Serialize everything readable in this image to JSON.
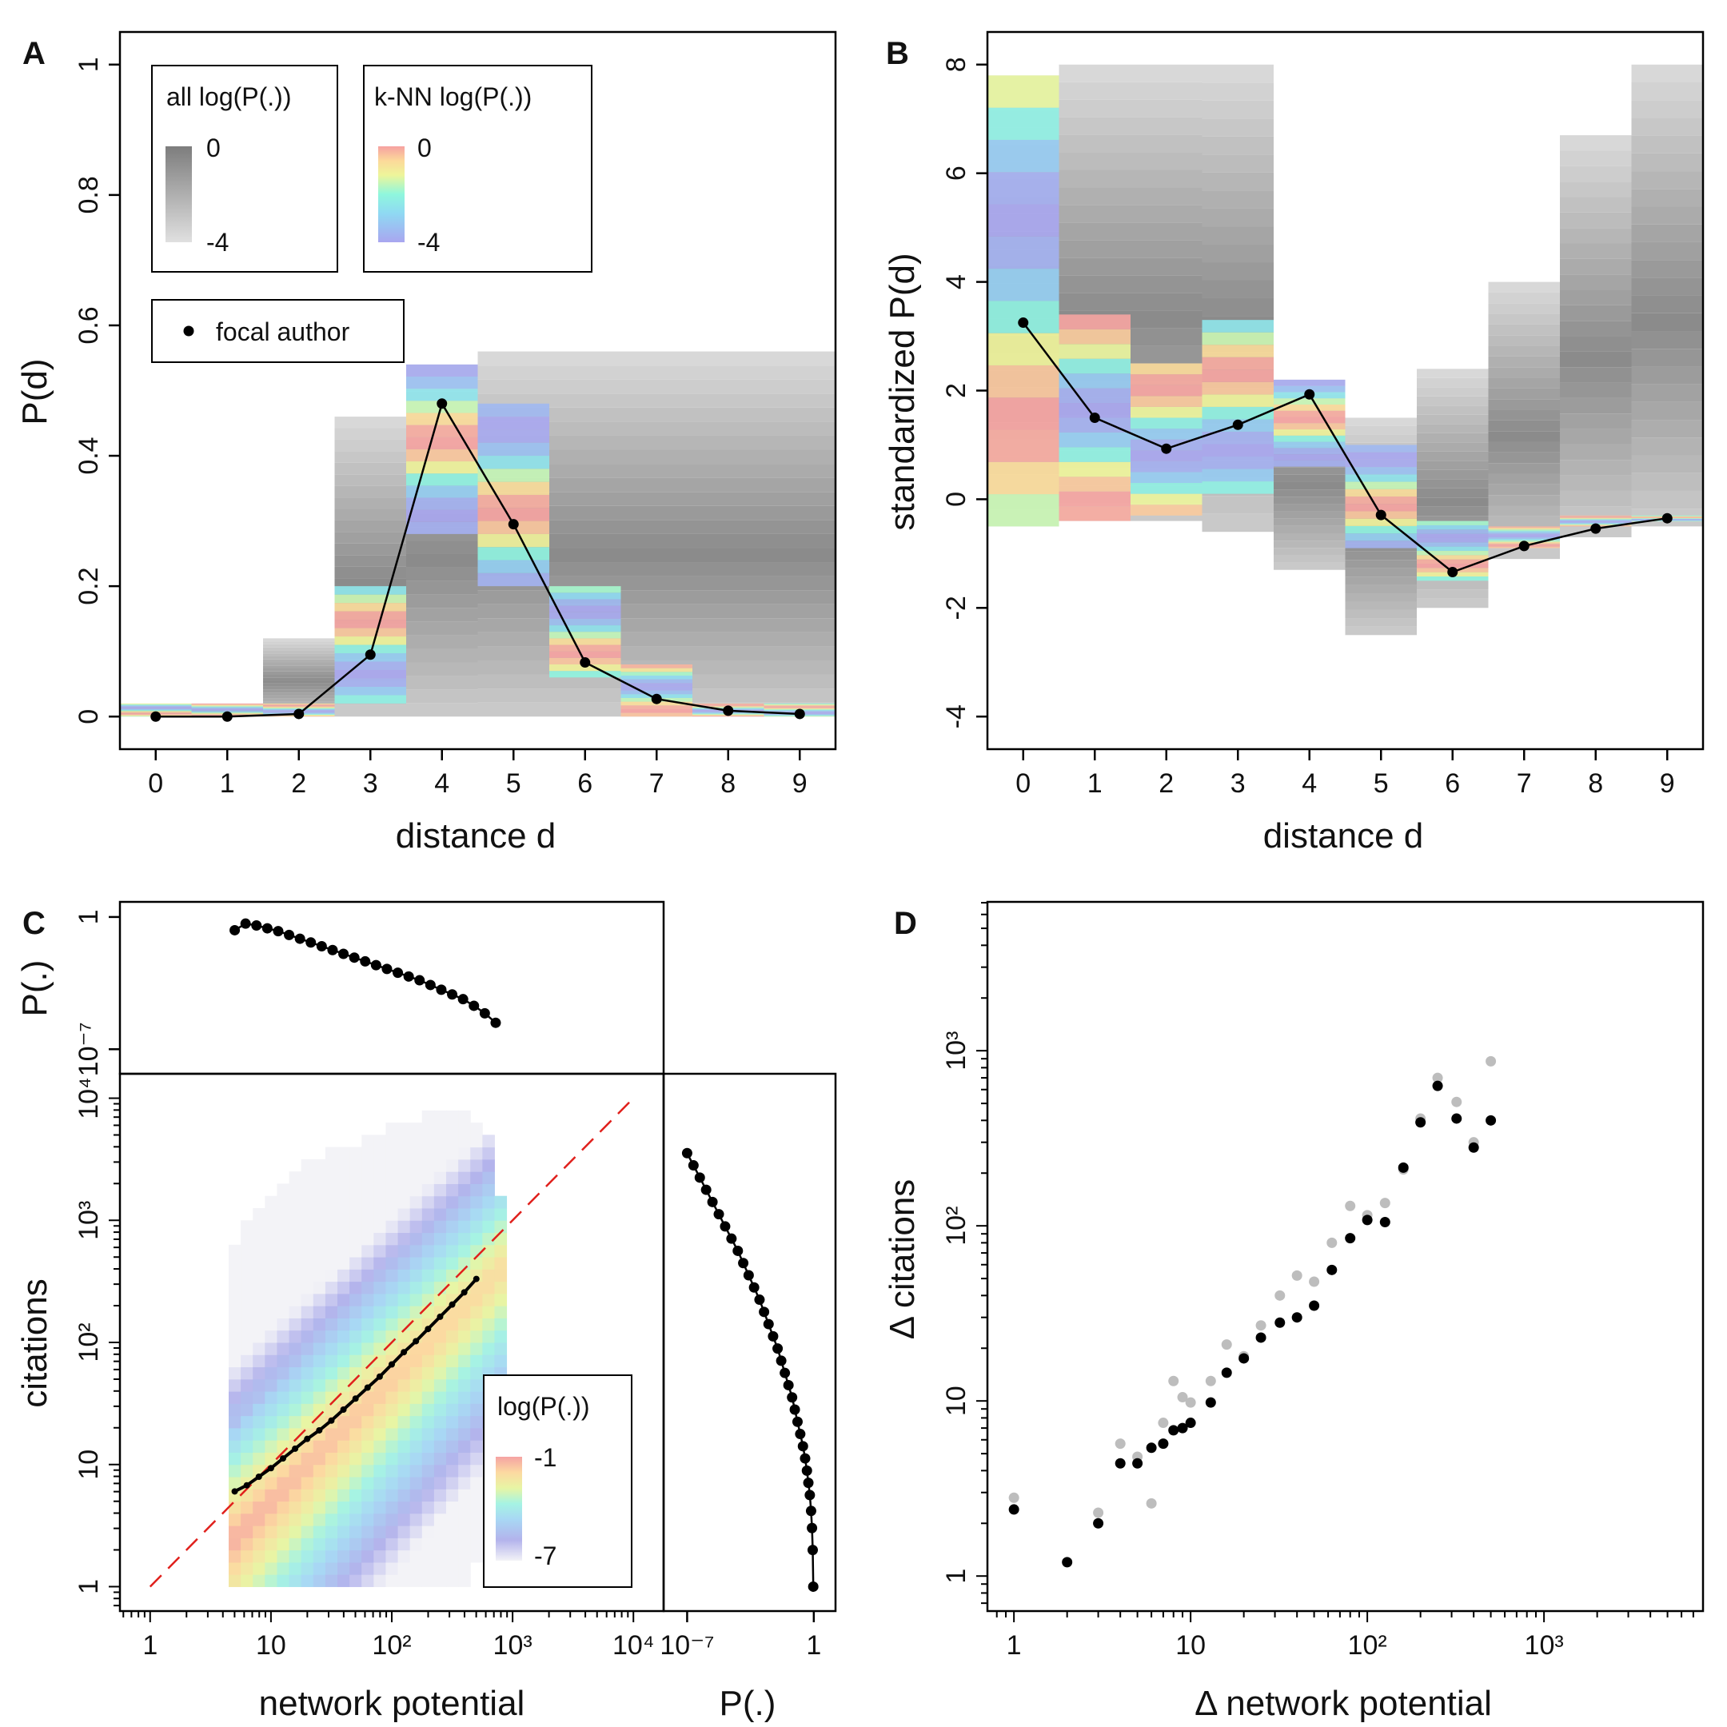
{
  "panels": {
    "a": "A",
    "b": "B",
    "c": "C",
    "d": "D"
  },
  "colors": {
    "gray_low": "#e0e0e0",
    "gray_high": "#7d7d7d",
    "knn_low": "#a9a6f0",
    "knn_high": "#f6a1a1",
    "identity_line": "#e0201c",
    "focal": "#000000",
    "d_gray_points": "#bdbdbd",
    "d_black_points": "#000000"
  },
  "chart_data": [
    {
      "type": "heatmap",
      "title": "",
      "xlabel": "distance d",
      "ylabel": "P(d)",
      "xlim": [
        -0.5,
        9.5
      ],
      "ylim": [
        -0.05,
        1.05
      ],
      "x_ticks": [
        "0",
        "1",
        "2",
        "3",
        "4",
        "5",
        "6",
        "7",
        "8",
        "9"
      ],
      "y_ticks": [
        0,
        0.2,
        0.4,
        0.6,
        0.8,
        1
      ],
      "y_tick_labels": [
        "0",
        "0.2",
        "0.4",
        "0.6",
        "0.8",
        "1"
      ],
      "columns": [
        {
          "d": 0,
          "all_min": 0,
          "all_max": 0.02,
          "knn_min": 0,
          "knn_max": 0.02
        },
        {
          "d": 1,
          "all_min": 0,
          "all_max": 0.02,
          "knn_min": 0,
          "knn_max": 0.02
        },
        {
          "d": 2,
          "all_min": 0,
          "all_max": 0.12,
          "knn_min": 0,
          "knn_max": 0.02
        },
        {
          "d": 3,
          "all_min": 0,
          "all_max": 0.46,
          "knn_min": 0.02,
          "knn_max": 0.2
        },
        {
          "d": 4,
          "all_min": 0,
          "all_max": 0.54,
          "knn_min": 0.28,
          "knn_max": 0.54
        },
        {
          "d": 5,
          "all_min": 0,
          "all_max": 0.56,
          "knn_min": 0.2,
          "knn_max": 0.48
        },
        {
          "d": 6,
          "all_min": 0,
          "all_max": 0.56,
          "knn_min": 0.06,
          "knn_max": 0.2
        },
        {
          "d": 7,
          "all_min": 0,
          "all_max": 0.56,
          "knn_min": 0.0,
          "knn_max": 0.08
        },
        {
          "d": 8,
          "all_min": 0,
          "all_max": 0.56,
          "knn_min": 0.0,
          "knn_max": 0.02
        },
        {
          "d": 9,
          "all_min": 0,
          "all_max": 0.56,
          "knn_min": 0.0,
          "knn_max": 0.02
        }
      ],
      "focal_author": {
        "x": [
          0,
          1,
          2,
          3,
          4,
          5,
          6,
          7,
          8,
          9
        ],
        "y": [
          0,
          0,
          0.004,
          0.095,
          0.48,
          0.295,
          0.083,
          0.027,
          0.009,
          0.004
        ]
      },
      "legends": {
        "all": {
          "title": "all log(P(.))",
          "max": "0",
          "min": "-4"
        },
        "knn": {
          "title": "k-NN log(P(.))",
          "max": "0",
          "min": "-4"
        },
        "focal": "focal author"
      }
    },
    {
      "type": "heatmap",
      "title": "",
      "xlabel": "distance d",
      "ylabel": "standardized P(d)",
      "xlim": [
        -0.5,
        9.5
      ],
      "ylim": [
        -4.6,
        8.6
      ],
      "x_ticks": [
        "0",
        "1",
        "2",
        "3",
        "4",
        "5",
        "6",
        "7",
        "8",
        "9"
      ],
      "y_ticks": [
        -4,
        -2,
        0,
        2,
        4,
        6,
        8
      ],
      "y_tick_labels": [
        "-4",
        "-2",
        "0",
        "2",
        "4",
        "6",
        "8"
      ],
      "columns": [
        {
          "d": 0,
          "all_min": -0.5,
          "all_max": 7.8,
          "knn_min": -0.5,
          "knn_max": 7.8
        },
        {
          "d": 1,
          "all_min": -0.4,
          "all_max": 8.0,
          "knn_min": -0.4,
          "knn_max": 3.4
        },
        {
          "d": 2,
          "all_min": -0.4,
          "all_max": 8.0,
          "knn_min": -0.3,
          "knn_max": 2.5
        },
        {
          "d": 3,
          "all_min": -0.6,
          "all_max": 8.0,
          "knn_min": 0.1,
          "knn_max": 3.3
        },
        {
          "d": 4,
          "all_min": -1.3,
          "all_max": 2.2,
          "knn_min": 0.6,
          "knn_max": 2.2
        },
        {
          "d": 5,
          "all_min": -2.5,
          "all_max": 1.5,
          "knn_min": -0.9,
          "knn_max": 1.0
        },
        {
          "d": 6,
          "all_min": -2.0,
          "all_max": 2.4,
          "knn_min": -1.5,
          "knn_max": -0.4
        },
        {
          "d": 7,
          "all_min": -1.1,
          "all_max": 4.0,
          "knn_min": -0.9,
          "knn_max": -0.5
        },
        {
          "d": 8,
          "all_min": -0.7,
          "all_max": 6.7,
          "knn_min": -0.5,
          "knn_max": -0.3
        },
        {
          "d": 9,
          "all_min": -0.5,
          "all_max": 8.0,
          "knn_min": -0.4,
          "knn_max": -0.3
        }
      ],
      "focal_author": {
        "x": [
          0,
          1,
          2,
          3,
          4,
          5,
          6,
          7,
          8,
          9
        ],
        "y": [
          3.25,
          1.5,
          0.93,
          1.37,
          1.93,
          -0.29,
          -1.34,
          -0.86,
          -0.54,
          -0.35
        ]
      }
    },
    {
      "type": "heatmap",
      "title": "",
      "xlabel": "network potential",
      "ylabel": "citations",
      "x_log": true,
      "y_log": true,
      "xlim_log10": [
        -0.25,
        4.25
      ],
      "ylim_log10": [
        -0.2,
        4.2
      ],
      "x_ticks": [
        "1",
        "10",
        "10²",
        "10³",
        "10⁴"
      ],
      "y_ticks": [
        "1",
        "10",
        "10²",
        "10³",
        "10⁴"
      ],
      "cells": [
        {
          "x_log10": 0.7,
          "y_min_log10": 0.0,
          "y_max_log10": 2.8
        },
        {
          "x_log10": 0.8,
          "y_min_log10": 0.0,
          "y_max_log10": 3.0
        },
        {
          "x_log10": 0.9,
          "y_min_log10": 0.0,
          "y_max_log10": 3.1
        },
        {
          "x_log10": 1.0,
          "y_min_log10": 0.0,
          "y_max_log10": 3.2
        },
        {
          "x_log10": 1.1,
          "y_min_log10": 0.0,
          "y_max_log10": 3.3
        },
        {
          "x_log10": 1.2,
          "y_min_log10": 0.0,
          "y_max_log10": 3.4
        },
        {
          "x_log10": 1.3,
          "y_min_log10": 0.0,
          "y_max_log10": 3.5
        },
        {
          "x_log10": 1.4,
          "y_min_log10": 0.0,
          "y_max_log10": 3.5
        },
        {
          "x_log10": 1.5,
          "y_min_log10": 0.0,
          "y_max_log10": 3.6
        },
        {
          "x_log10": 1.6,
          "y_min_log10": 0.0,
          "y_max_log10": 3.6
        },
        {
          "x_log10": 1.7,
          "y_min_log10": 0.0,
          "y_max_log10": 3.6
        },
        {
          "x_log10": 1.8,
          "y_min_log10": 0.0,
          "y_max_log10": 3.7
        },
        {
          "x_log10": 1.9,
          "y_min_log10": 0.0,
          "y_max_log10": 3.7
        },
        {
          "x_log10": 2.0,
          "y_min_log10": 0.0,
          "y_max_log10": 3.8
        },
        {
          "x_log10": 2.1,
          "y_min_log10": 0.0,
          "y_max_log10": 3.8
        },
        {
          "x_log10": 2.2,
          "y_min_log10": 0.0,
          "y_max_log10": 3.8
        },
        {
          "x_log10": 2.3,
          "y_min_log10": 0.0,
          "y_max_log10": 3.9
        },
        {
          "x_log10": 2.4,
          "y_min_log10": 0.0,
          "y_max_log10": 3.9
        },
        {
          "x_log10": 2.5,
          "y_min_log10": 0.0,
          "y_max_log10": 3.9
        },
        {
          "x_log10": 2.6,
          "y_min_log10": 0.0,
          "y_max_log10": 3.9
        },
        {
          "x_log10": 2.7,
          "y_min_log10": 0.2,
          "y_max_log10": 3.8
        },
        {
          "x_log10": 2.8,
          "y_min_log10": 0.6,
          "y_max_log10": 3.7
        },
        {
          "x_log10": 2.9,
          "y_min_log10": 1.0,
          "y_max_log10": 3.2
        }
      ],
      "mean_line": {
        "x_log10": [
          0.7,
          0.8,
          0.9,
          1.0,
          1.1,
          1.2,
          1.3,
          1.4,
          1.5,
          1.6,
          1.7,
          1.8,
          1.9,
          2.0,
          2.1,
          2.2,
          2.3,
          2.4,
          2.5,
          2.6,
          2.7
        ],
        "y_log10": [
          0.78,
          0.83,
          0.9,
          0.97,
          1.05,
          1.13,
          1.21,
          1.28,
          1.36,
          1.45,
          1.54,
          1.63,
          1.72,
          1.82,
          1.92,
          2.01,
          2.11,
          2.21,
          2.31,
          2.41,
          2.52
        ]
      },
      "identity_line": {
        "x_log10": [
          0,
          4.0
        ],
        "y_log10": [
          0,
          4.0
        ]
      },
      "legend": {
        "title": "log(P(.))",
        "max": "-1",
        "min": "-7"
      },
      "marginal_top": {
        "ylabel": "P(.)",
        "y_ticks": [
          "10⁻⁷",
          "1"
        ],
        "ylim_log10": [
          -8.3,
          0.8
        ],
        "x_log10": [
          0.7,
          0.79,
          0.88,
          0.97,
          1.06,
          1.15,
          1.24,
          1.33,
          1.42,
          1.51,
          1.6,
          1.69,
          1.78,
          1.87,
          1.96,
          2.05,
          2.14,
          2.23,
          2.32,
          2.41,
          2.5,
          2.59,
          2.68,
          2.77,
          2.86
        ],
        "y_log10": [
          -0.7,
          -0.35,
          -0.45,
          -0.6,
          -0.75,
          -0.95,
          -1.15,
          -1.35,
          -1.55,
          -1.75,
          -1.95,
          -2.15,
          -2.35,
          -2.55,
          -2.75,
          -2.95,
          -3.15,
          -3.35,
          -3.6,
          -3.85,
          -4.1,
          -4.35,
          -4.7,
          -5.1,
          -5.6
        ]
      },
      "marginal_right": {
        "xlabel": "P(.)",
        "x_ticks": [
          "10⁻⁷",
          "1"
        ],
        "xlim_log10": [
          -8.3,
          1.2
        ],
        "y_log10": [
          3.55,
          3.45,
          3.35,
          3.25,
          3.15,
          3.05,
          2.95,
          2.85,
          2.75,
          2.65,
          2.55,
          2.45,
          2.35,
          2.25,
          2.15,
          2.05,
          1.95,
          1.85,
          1.75,
          1.65,
          1.55,
          1.45,
          1.35,
          1.25,
          1.15,
          1.05,
          0.95,
          0.85,
          0.75,
          0.62,
          0.48,
          0.3,
          0.0
        ],
        "x_log10": [
          -7.0,
          -6.65,
          -6.3,
          -5.95,
          -5.6,
          -5.25,
          -4.9,
          -4.55,
          -4.2,
          -3.9,
          -3.6,
          -3.3,
          -3.0,
          -2.75,
          -2.5,
          -2.25,
          -2.0,
          -1.8,
          -1.6,
          -1.4,
          -1.2,
          -1.05,
          -0.9,
          -0.75,
          -0.6,
          -0.48,
          -0.38,
          -0.3,
          -0.22,
          -0.15,
          -0.1,
          -0.06,
          -0.03
        ]
      }
    },
    {
      "type": "scatter",
      "title": "",
      "xlabel": "Δ network potential",
      "ylabel": "Δ citations",
      "x_log": true,
      "y_log": true,
      "xlim_log10": [
        -0.15,
        3.9
      ],
      "ylim_log10": [
        -0.2,
        3.85
      ],
      "x_ticks": [
        "1",
        "10",
        "10²",
        "10³"
      ],
      "y_ticks": [
        "1",
        "10",
        "10²",
        "10³"
      ],
      "series": [
        {
          "name": "gray",
          "x": [
            1,
            3,
            4,
            5,
            6,
            7,
            8,
            9,
            10,
            13,
            16,
            20,
            25,
            32,
            40,
            50,
            63,
            80,
            100,
            126,
            160,
            200,
            250,
            320,
            400,
            500
          ],
          "y": [
            2.8,
            2.3,
            5.7,
            4.8,
            2.6,
            7.5,
            13,
            10.5,
            9.8,
            13,
            21,
            18,
            27,
            40,
            52,
            48,
            80,
            130,
            115,
            135,
            210,
            410,
            700,
            510,
            300,
            870
          ]
        },
        {
          "name": "black",
          "x": [
            1,
            2,
            3,
            4,
            5,
            6,
            7,
            8,
            9,
            10,
            13,
            16,
            20,
            25,
            32,
            40,
            50,
            63,
            80,
            100,
            126,
            160,
            200,
            250,
            320,
            400,
            500
          ],
          "y": [
            2.4,
            1.2,
            2.0,
            4.4,
            4.4,
            5.4,
            5.7,
            6.8,
            7.0,
            7.5,
            9.8,
            14.5,
            17.5,
            23,
            28,
            30,
            35,
            56,
            85,
            108,
            105,
            215,
            390,
            630,
            410,
            280,
            400
          ]
        }
      ]
    }
  ]
}
